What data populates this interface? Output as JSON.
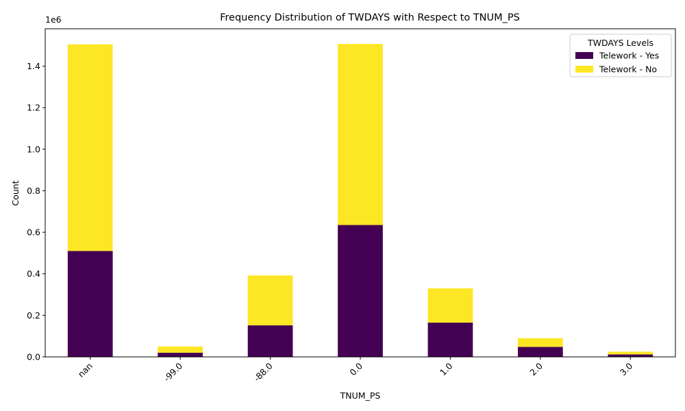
{
  "chart_data": {
    "type": "bar",
    "stacked": true,
    "title": "Frequency Distribution of TWDAYS with Respect to TNUM_PS",
    "xlabel": "TNUM_PS",
    "ylabel": "Count",
    "y_offset_label": "1e6",
    "y_scale": 1000000,
    "categories": [
      "nan",
      "-99.0",
      "-88.0",
      "0.0",
      "1.0",
      "2.0",
      "3.0"
    ],
    "series": [
      {
        "name": "Telework - Yes",
        "color": "#440154",
        "values": [
          510000,
          20000,
          152000,
          635000,
          165000,
          48000,
          12000
        ]
      },
      {
        "name": "Telework - No",
        "color": "#fde725",
        "values": [
          995000,
          30000,
          240000,
          872000,
          165000,
          42000,
          13000
        ]
      }
    ],
    "yticks": [
      0.0,
      0.2,
      0.4,
      0.6,
      0.8,
      1.0,
      1.2,
      1.4
    ],
    "ylim": [
      0,
      1580000
    ],
    "grid": false,
    "legend": {
      "title": "TWDAYS Levels",
      "placement": "top-right"
    }
  }
}
